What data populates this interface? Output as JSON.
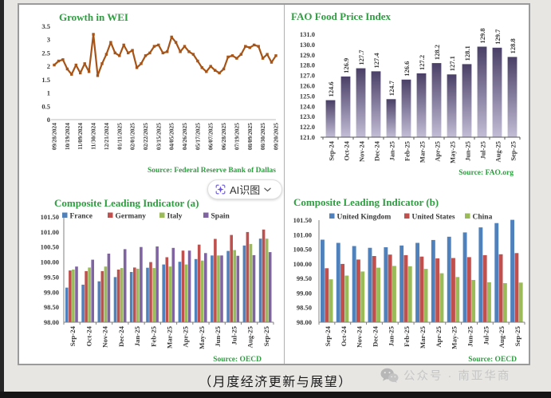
{
  "page": {
    "caption": "（月度经济更新与展望）",
    "watermark": {
      "icon": "wechat-icon",
      "label": "公众号 · 南亚华商"
    },
    "ai_button": {
      "icon": "ai-scan-icon",
      "label": "AI识图",
      "chevron": "chevron-down-icon"
    }
  },
  "colors": {
    "title_green": "#2f9e41",
    "wei_line": "#a65417",
    "axis_text": "#3a3a3a",
    "series_blue": "#4f81bd",
    "series_red": "#c0504d",
    "series_olive": "#9bbb59",
    "series_purple": "#8064a2"
  },
  "chart_data": [
    {
      "id": "wei",
      "type": "line",
      "title": "Growth in WEI",
      "source": "Source: Federal Reserve Bank of Dallas",
      "ylim": [
        0,
        3.5
      ],
      "yticks": [
        "3.5",
        "3",
        "2.5",
        "2",
        "1.5",
        "1",
        "0.5",
        "0"
      ],
      "x_labels": [
        "09/28/2024",
        "10/19/2024",
        "11/09/2024",
        "11/30/2024",
        "12/21/2024",
        "01/11/2025",
        "02/01/2025",
        "02/22/2025",
        "03/15/2025",
        "04/05/2025",
        "04/26/2025",
        "05/17/2025",
        "06/07/2025",
        "06/28/2025",
        "07/19/2025",
        "08/09/2025",
        "08/30/2025",
        "09/20/2025"
      ],
      "label_every": 3,
      "line_color": "#a65417",
      "values": [
        2.05,
        2.2,
        2.25,
        1.9,
        1.7,
        2.05,
        1.75,
        2.1,
        1.8,
        3.2,
        1.65,
        2.1,
        2.45,
        2.9,
        2.5,
        2.4,
        2.8,
        2.5,
        2.6,
        1.95,
        2.1,
        2.4,
        2.5,
        2.75,
        2.8,
        2.5,
        2.55,
        3.1,
        2.9,
        2.55,
        2.75,
        2.55,
        2.45,
        2.2,
        1.95,
        1.8,
        2.0,
        1.85,
        1.75,
        1.9,
        2.35,
        2.4,
        2.3,
        2.45,
        2.75,
        2.7,
        2.8,
        2.75,
        2.3,
        2.45,
        2.15,
        2.4
      ]
    },
    {
      "id": "fao",
      "type": "bar",
      "title": "FAO Food Price Index",
      "source": "Source: FAO.org",
      "ylim": [
        121,
        131
      ],
      "yticks": [
        "131.0",
        "130.0",
        "129.0",
        "128.0",
        "127.0",
        "126.0",
        "125.0",
        "124.0",
        "123.0",
        "122.0",
        "121.0"
      ],
      "categories": [
        "Sep-24",
        "Oct-24",
        "Nov-24",
        "Dec-24",
        "Jan-25",
        "Feb-25",
        "Mar-25",
        "Apr-25",
        "May-25",
        "Jun-25",
        "Jul-25",
        "Aug-25",
        "Sep-25"
      ],
      "values": [
        124.6,
        126.9,
        127.7,
        127.4,
        124.7,
        126.6,
        127.2,
        128.2,
        127.1,
        128.1,
        129.8,
        129.7,
        128.8
      ],
      "bar_gradient": [
        "#4a4067",
        "#c3bdd6"
      ]
    },
    {
      "id": "clia",
      "type": "grouped-bar",
      "title": "Composite Leading Indicator (a)",
      "source": "Source: OECD",
      "ylim": [
        98,
        101.5
      ],
      "yticks": [
        "101.50",
        "101.00",
        "100.50",
        "100.00",
        "99.50",
        "99.00",
        "98.50",
        "98.00"
      ],
      "categories": [
        "Sep-24",
        "Oct-24",
        "Nov-24",
        "Dec-24",
        "Jan-25",
        "Feb-25",
        "Mar-25",
        "Apr-25",
        "May-25",
        "Jun-25",
        "Jul-25",
        "Aug-25",
        "Sep-25"
      ],
      "series": [
        {
          "name": "France",
          "color": "#4f81bd",
          "values": [
            99.15,
            99.25,
            99.36,
            99.5,
            99.67,
            99.81,
            99.92,
            100.01,
            100.1,
            100.22,
            100.37,
            100.55,
            100.78
          ]
        },
        {
          "name": "Germany",
          "color": "#c0504d",
          "values": [
            99.72,
            99.7,
            99.7,
            99.75,
            99.82,
            100.0,
            100.16,
            100.38,
            100.58,
            100.77,
            100.9,
            101.0,
            101.08
          ]
        },
        {
          "name": "Italy",
          "color": "#9bbb59",
          "values": [
            99.75,
            99.82,
            99.85,
            99.8,
            99.78,
            99.8,
            99.85,
            99.92,
            100.05,
            100.22,
            100.4,
            100.6,
            100.78
          ]
        },
        {
          "name": "Spain",
          "color": "#8064a2",
          "values": [
            99.85,
            100.08,
            100.28,
            100.43,
            100.5,
            100.52,
            100.47,
            100.38,
            100.3,
            100.22,
            100.21,
            100.23,
            100.33
          ]
        }
      ]
    },
    {
      "id": "clib",
      "type": "grouped-bar",
      "title": "Composite Leading Indicator (b)",
      "source": "Source: OECD",
      "ylim": [
        98,
        101.5
      ],
      "yticks": [
        "101.50",
        "101.00",
        "100.50",
        "100.00",
        "99.50",
        "99.00",
        "98.50",
        "98.00"
      ],
      "categories": [
        "Sep-24",
        "Oct-24",
        "Nov-24",
        "Dec-24",
        "Jan-25",
        "Feb-25",
        "Mar-25",
        "Apr-25",
        "May-25",
        "Jun-25",
        "Jul-25",
        "Aug-25",
        "Sep-25"
      ],
      "series": [
        {
          "name": "United Kingdom",
          "color": "#4f81bd",
          "values": [
            100.83,
            100.72,
            100.61,
            100.55,
            100.57,
            100.63,
            100.72,
            100.82,
            100.93,
            101.08,
            101.25,
            101.4,
            101.51
          ]
        },
        {
          "name": "United States",
          "color": "#c0504d",
          "values": [
            99.85,
            100.0,
            100.15,
            100.27,
            100.32,
            100.3,
            100.25,
            100.19,
            100.2,
            100.23,
            100.3,
            100.33,
            100.37
          ]
        },
        {
          "name": "China",
          "color": "#9bbb59",
          "values": [
            99.47,
            99.6,
            99.74,
            99.87,
            99.93,
            99.92,
            99.83,
            99.68,
            99.55,
            99.45,
            99.37,
            99.34,
            99.36
          ]
        }
      ]
    }
  ]
}
